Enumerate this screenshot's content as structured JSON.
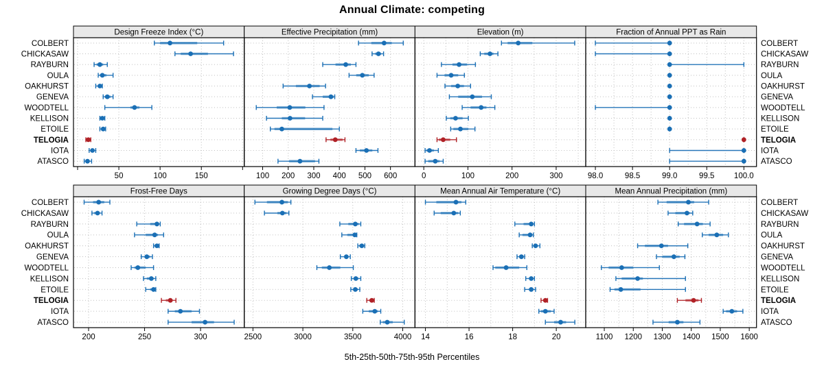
{
  "title": "Annual Climate: competing",
  "caption": "5th-25th-50th-75th-95th Percentiles",
  "colors": {
    "series": "#1A6FB5",
    "highlight": "#B02126",
    "strip_bg": "#E8E8E8",
    "panel_border": "#000000",
    "grid": "#BFBFBF",
    "tick": "#000000",
    "text": "#000000"
  },
  "chart_data": {
    "type": "dotplot",
    "layout": "trellis 2 rows x 4 columns of percentile interval plots",
    "percentiles": [
      5,
      25,
      50,
      75,
      95
    ],
    "sites": [
      "COLBERT",
      "CHICKASAW",
      "RAYBURN",
      "OULA",
      "OAKHURST",
      "GENEVA",
      "WOODTELL",
      "KELLISON",
      "ETOILE",
      "TELOGIA",
      "IOTA",
      "ATASCO"
    ],
    "highlighted_site": "TELOGIA",
    "panels": [
      {
        "id": "design-freeze-index",
        "title": "Design Freeze Index (°C)",
        "xlim": [
          -5,
          202
        ],
        "ticks": [
          50,
          100,
          150
        ],
        "tick_labels": [
          "50",
          "100",
          "150"
        ],
        "extra_ticks": [
          0,
          200
        ],
        "grid": [
          0,
          50,
          100,
          150,
          200
        ],
        "values": [
          [
            93,
            100,
            112,
            145,
            177
          ],
          [
            118,
            125,
            137,
            158,
            189
          ],
          [
            20,
            23,
            27,
            31,
            36
          ],
          [
            25,
            27,
            30,
            35,
            43
          ],
          [
            22,
            25,
            27,
            29,
            30
          ],
          [
            31,
            33,
            36,
            40,
            43
          ],
          [
            33,
            64,
            69,
            75,
            90
          ],
          [
            27,
            29,
            30,
            32,
            33
          ],
          [
            27,
            29,
            31,
            32,
            34
          ],
          [
            10,
            12,
            13,
            14,
            16
          ],
          [
            14,
            16,
            18,
            20,
            22
          ],
          [
            8,
            10,
            12,
            14,
            17
          ]
        ]
      },
      {
        "id": "effective-precipitation",
        "title": "Effective Precipitation (mm)",
        "xlim": [
          28,
          696
        ],
        "ticks": [
          100,
          200,
          300,
          400,
          500,
          600
        ],
        "tick_labels": [
          "100",
          "200",
          "300",
          "400",
          "500",
          "600"
        ],
        "grid": [
          100,
          200,
          300,
          400,
          500,
          600
        ],
        "values": [
          [
            475,
            525,
            575,
            605,
            650
          ],
          [
            528,
            540,
            553,
            563,
            573
          ],
          [
            335,
            385,
            425,
            445,
            465
          ],
          [
            438,
            466,
            490,
            515,
            536
          ],
          [
            180,
            230,
            283,
            323,
            346
          ],
          [
            295,
            335,
            367,
            378,
            382
          ],
          [
            75,
            155,
            206,
            267,
            340
          ],
          [
            115,
            175,
            207,
            266,
            335
          ],
          [
            130,
            146,
            175,
            373,
            400
          ],
          [
            348,
            365,
            384,
            413,
            422
          ],
          [
            465,
            480,
            506,
            529,
            551
          ],
          [
            160,
            203,
            246,
            305,
            320
          ]
        ]
      },
      {
        "id": "elevation",
        "title": "Elevation (m)",
        "xlim": [
          -20,
          367
        ],
        "ticks": [
          0,
          100,
          200,
          300
        ],
        "tick_labels": [
          "0",
          "100",
          "200",
          "300"
        ],
        "grid": [
          0,
          50,
          100,
          150,
          200,
          250,
          300,
          350
        ],
        "values": [
          [
            176,
            190,
            214,
            246,
            342
          ],
          [
            128,
            137,
            150,
            158,
            168
          ],
          [
            40,
            65,
            80,
            98,
            117
          ],
          [
            30,
            47,
            62,
            78,
            92
          ],
          [
            48,
            62,
            77,
            91,
            106
          ],
          [
            58,
            78,
            110,
            132,
            153
          ],
          [
            87,
            106,
            130,
            142,
            161
          ],
          [
            51,
            60,
            72,
            88,
            101
          ],
          [
            61,
            67,
            83,
            101,
            116
          ],
          [
            30,
            34,
            44,
            60,
            74
          ],
          [
            3,
            6,
            13,
            23,
            33
          ],
          [
            3,
            10,
            26,
            36,
            44
          ]
        ]
      },
      {
        "id": "fraction-ppt-as-rain",
        "title": "Fraction of Annual PPT as Rain",
        "xlim": [
          97.87,
          100.17
        ],
        "ticks": [
          98.0,
          98.5,
          99.0,
          99.5,
          100.0
        ],
        "tick_labels": [
          "98.0",
          "98.5",
          "99.0",
          "99.5",
          "100.0"
        ],
        "grid": [
          98.0,
          98.25,
          98.5,
          98.75,
          99.0,
          99.25,
          99.5,
          99.75,
          100.0
        ],
        "values": [
          [
            98,
            99,
            99,
            99,
            99
          ],
          [
            98,
            99,
            99,
            99,
            99
          ],
          [
            99,
            99,
            99,
            99,
            100
          ],
          [
            99,
            99,
            99,
            99,
            99
          ],
          [
            99,
            99,
            99,
            99,
            99
          ],
          [
            99,
            99,
            99,
            99,
            99
          ],
          [
            98,
            99,
            99,
            99,
            99
          ],
          [
            99,
            99,
            99,
            99,
            99
          ],
          [
            99,
            99,
            99,
            99,
            99
          ],
          [
            100,
            100,
            100,
            100,
            100
          ],
          [
            99,
            100,
            100,
            100,
            100
          ],
          [
            99,
            100,
            100,
            100,
            100
          ]
        ]
      },
      {
        "id": "frost-free-days",
        "title": "Frost-Free Days",
        "xlim": [
          186.5,
          339
        ],
        "ticks": [
          200,
          250,
          300
        ],
        "tick_labels": [
          "200",
          "250",
          "300"
        ],
        "grid": [
          200,
          250,
          300
        ],
        "values": [
          [
            196,
            204,
            209,
            214,
            219
          ],
          [
            203,
            205,
            208,
            210,
            212
          ],
          [
            243,
            255,
            261,
            263,
            264
          ],
          [
            241,
            251,
            259,
            262,
            267
          ],
          [
            258,
            259,
            261,
            262,
            263
          ],
          [
            247,
            250,
            252,
            255,
            257
          ],
          [
            238,
            241,
            244,
            251,
            258
          ],
          [
            249,
            252,
            256,
            258,
            260
          ],
          [
            251,
            255,
            258,
            259,
            260
          ],
          [
            265,
            269,
            273,
            275,
            278
          ],
          [
            271,
            277,
            282,
            292,
            299
          ],
          [
            271,
            292,
            304,
            312,
            330
          ]
        ]
      },
      {
        "id": "growing-degree-days",
        "title": "Growing Degree Days (°C)",
        "xlim": [
          2413,
          4123
        ],
        "ticks": [
          2500,
          3000,
          3500,
          4000
        ],
        "tick_labels": [
          "2500",
          "3000",
          "3500",
          "4000"
        ],
        "grid": [
          2500,
          3000,
          3500,
          4000
        ],
        "values": [
          [
            2520,
            2640,
            2790,
            2850,
            2880
          ],
          [
            2615,
            2745,
            2795,
            2835,
            2860
          ],
          [
            3370,
            3455,
            3525,
            3560,
            3580
          ],
          [
            3390,
            3445,
            3520,
            3535,
            3540
          ],
          [
            3550,
            3565,
            3590,
            3605,
            3620
          ],
          [
            3375,
            3415,
            3435,
            3455,
            3475
          ],
          [
            3140,
            3190,
            3265,
            3375,
            3505
          ],
          [
            3485,
            3510,
            3530,
            3555,
            3580
          ],
          [
            3480,
            3505,
            3525,
            3550,
            3570
          ],
          [
            3640,
            3665,
            3690,
            3705,
            3715
          ],
          [
            3600,
            3660,
            3720,
            3750,
            3780
          ],
          [
            3775,
            3800,
            3845,
            3900,
            4015
          ]
        ]
      },
      {
        "id": "mean-annual-air-temperature",
        "title": "Mean Annual Air Temperature (°C)",
        "xlim": [
          13.52,
          21.35
        ],
        "ticks": [
          14,
          16,
          18,
          20
        ],
        "tick_labels": [
          "14",
          "16",
          "18",
          "20"
        ],
        "grid": [
          14,
          15,
          16,
          17,
          18,
          19,
          20,
          21
        ],
        "values": [
          [
            14.0,
            14.5,
            15.4,
            15.65,
            15.85
          ],
          [
            14.4,
            14.7,
            15.3,
            15.5,
            15.6
          ],
          [
            18.1,
            18.5,
            18.85,
            18.95,
            19.0
          ],
          [
            18.3,
            18.45,
            18.8,
            18.9,
            18.95
          ],
          [
            18.9,
            19.0,
            19.05,
            19.15,
            19.25
          ],
          [
            18.2,
            18.3,
            18.4,
            18.5,
            18.55
          ],
          [
            17.1,
            17.2,
            17.7,
            18.3,
            18.65
          ],
          [
            18.6,
            18.75,
            18.85,
            18.95,
            19.0
          ],
          [
            18.55,
            18.75,
            18.85,
            18.95,
            19.05
          ],
          [
            19.3,
            19.4,
            19.5,
            19.55,
            19.6
          ],
          [
            19.2,
            19.3,
            19.5,
            19.75,
            19.9
          ],
          [
            19.5,
            19.9,
            20.2,
            20.45,
            20.85
          ]
        ]
      },
      {
        "id": "mean-annual-precipitation",
        "title": "Mean Annual Precipitation (mm)",
        "xlim": [
          1036,
          1625
        ],
        "ticks": [
          1100,
          1200,
          1300,
          1400,
          1500,
          1600
        ],
        "tick_labels": [
          "1100",
          "1200",
          "1300",
          "1400",
          "1500",
          "1600"
        ],
        "grid": [
          1100,
          1150,
          1200,
          1250,
          1300,
          1350,
          1400,
          1450,
          1500,
          1550,
          1600
        ],
        "values": [
          [
            1285,
            1315,
            1390,
            1410,
            1460
          ],
          [
            1320,
            1345,
            1385,
            1395,
            1405
          ],
          [
            1355,
            1375,
            1420,
            1440,
            1465
          ],
          [
            1438,
            1460,
            1488,
            1510,
            1528
          ],
          [
            1215,
            1240,
            1297,
            1320,
            1388
          ],
          [
            1280,
            1300,
            1340,
            1360,
            1378
          ],
          [
            1090,
            1115,
            1160,
            1200,
            1290
          ],
          [
            1140,
            1160,
            1215,
            1233,
            1380
          ],
          [
            1120,
            1135,
            1157,
            1225,
            1380
          ],
          [
            1352,
            1380,
            1408,
            1425,
            1435
          ],
          [
            1510,
            1520,
            1540,
            1558,
            1578
          ],
          [
            1268,
            1322,
            1352,
            1373,
            1430
          ]
        ]
      }
    ]
  }
}
